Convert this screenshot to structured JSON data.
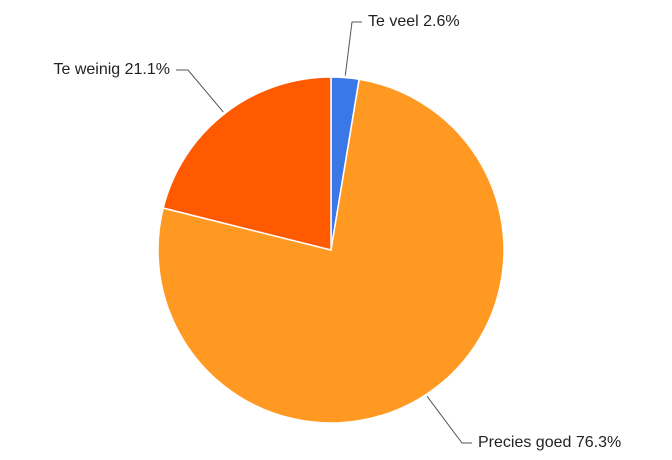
{
  "chart_data": {
    "type": "pie",
    "categories": [
      "Te veel",
      "Precies goed",
      "Te weinig"
    ],
    "values": [
      2.6,
      76.3,
      21.1
    ],
    "value_labels": [
      "2.6%",
      "76.3%",
      "21.1%"
    ],
    "colors": [
      "#3b78e7",
      "#ff9922",
      "#ff5a00"
    ]
  }
}
